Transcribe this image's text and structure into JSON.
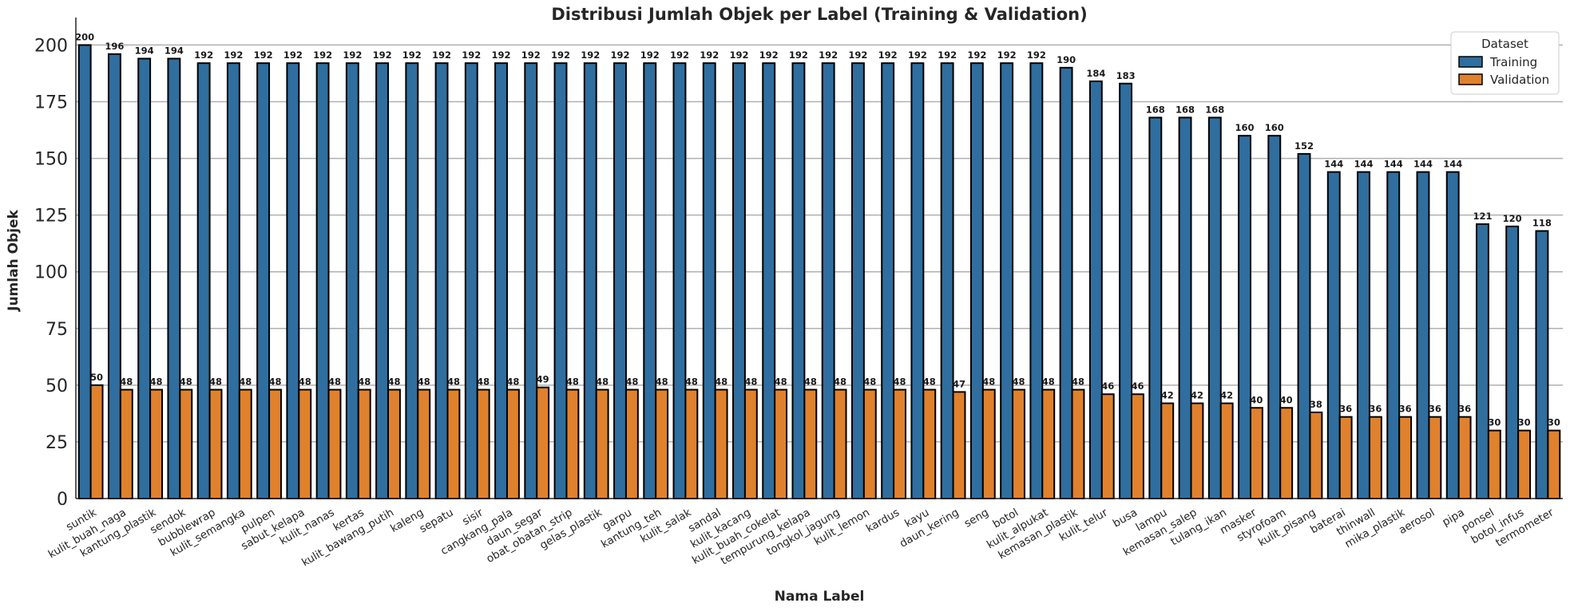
{
  "chart_data": {
    "type": "bar",
    "title": "Distribusi Jumlah Objek per Label (Training & Validation)",
    "xlabel": "Nama Label",
    "ylabel": "Jumlah Objek",
    "ylim": [
      0,
      210
    ],
    "yticks": [
      0,
      25,
      50,
      75,
      100,
      125,
      150,
      175,
      200
    ],
    "grid": true,
    "legend": {
      "title": "Dataset",
      "position": "top-right"
    },
    "categories": [
      "suntik",
      "kulit_buah_naga",
      "kantung_plastik",
      "sendok",
      "bubblewrap",
      "kulit_semangka",
      "pulpen",
      "sabut_kelapa",
      "kulit_nanas",
      "kertas",
      "kulit_bawang_putih",
      "kaleng",
      "sepatu",
      "sisir",
      "cangkang_pala",
      "daun_segar",
      "obat_obatan_strip",
      "gelas_plastik",
      "garpu",
      "kantung_teh",
      "kulit_salak",
      "sandal",
      "kulit_kacang",
      "kulit_buah_cokelat",
      "tempurung_kelapa",
      "tongkol_jagung",
      "kulit_lemon",
      "kardus",
      "kayu",
      "daun_kering",
      "seng",
      "botol",
      "kulit_alpukat",
      "kemasan_plastik",
      "kulit_telur",
      "busa",
      "lampu",
      "kemasan_salep",
      "tulang_ikan",
      "masker",
      "styrofoam",
      "kulit_pisang",
      "baterai",
      "thinwall",
      "mika_plastik",
      "aerosol",
      "pipa",
      "ponsel",
      "botol_infus",
      "termometer"
    ],
    "series": [
      {
        "name": "Training",
        "color": "#2f6e9e",
        "values": [
          200,
          196,
          194,
          194,
          192,
          192,
          192,
          192,
          192,
          192,
          192,
          192,
          192,
          192,
          192,
          192,
          192,
          192,
          192,
          192,
          192,
          192,
          192,
          192,
          192,
          192,
          192,
          192,
          192,
          192,
          192,
          192,
          192,
          190,
          184,
          183,
          168,
          168,
          168,
          160,
          160,
          152,
          144,
          144,
          144,
          144,
          144,
          121,
          120,
          118
        ]
      },
      {
        "name": "Validation",
        "color": "#e0812d",
        "values": [
          50,
          48,
          48,
          48,
          48,
          48,
          48,
          48,
          48,
          48,
          48,
          48,
          48,
          48,
          48,
          49,
          48,
          48,
          48,
          48,
          48,
          48,
          48,
          48,
          48,
          48,
          48,
          48,
          48,
          47,
          48,
          48,
          48,
          48,
          46,
          46,
          42,
          42,
          42,
          40,
          40,
          38,
          36,
          36,
          36,
          36,
          36,
          30,
          30,
          30
        ]
      }
    ]
  }
}
